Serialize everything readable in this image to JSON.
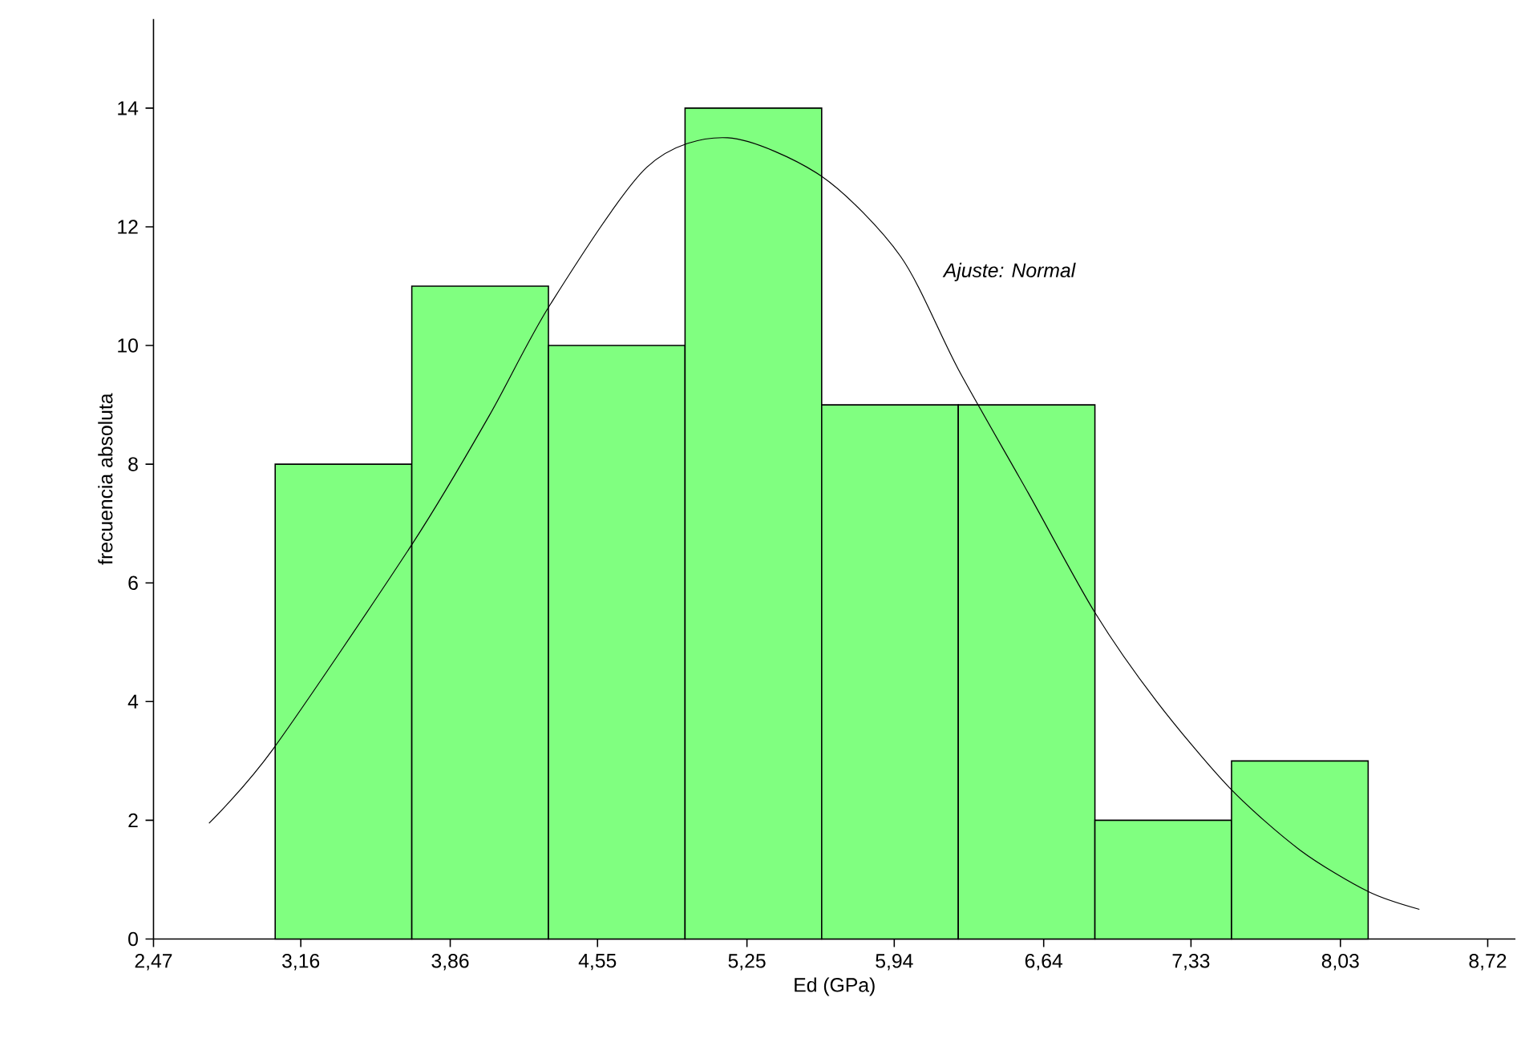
{
  "chart_data": {
    "type": "histogram",
    "xlabel": "Ed (GPa)",
    "ylabel": "frecuencia absoluta",
    "bins": [
      3.04,
      3.68,
      4.32,
      4.96,
      5.6,
      6.24,
      6.88,
      7.52,
      8.16
    ],
    "values": [
      8,
      11,
      10,
      14,
      9,
      9,
      2,
      3
    ],
    "color": "#80ff80",
    "series": [
      {
        "type": "line",
        "color": "#000000",
        "x": [
          2.73,
          3.03,
          3.69,
          4.04,
          4.33,
          4.78,
          5.16,
          5.6,
          5.97,
          6.24,
          6.57,
          6.88,
          7.17,
          7.51,
          7.84,
          8.16,
          8.4
        ],
        "values": [
          1.95,
          3.2,
          6.7,
          8.8,
          10.7,
          13.0,
          13.5,
          12.85,
          11.5,
          9.6,
          7.5,
          5.5,
          4.0,
          2.55,
          1.5,
          0.8,
          0.5
        ]
      }
    ],
    "annotations": [
      "Ajuste: Normal"
    ],
    "xlim": [
      2.47,
      8.85
    ],
    "ylim": [
      0,
      15.5
    ],
    "xticks": [
      {
        "value": 2.47,
        "label": "2,47"
      },
      {
        "value": 3.16,
        "label": "3,16"
      },
      {
        "value": 3.86,
        "label": "3,86"
      },
      {
        "value": 4.55,
        "label": "4,55"
      },
      {
        "value": 5.25,
        "label": "5,25"
      },
      {
        "value": 5.94,
        "label": "5,94"
      },
      {
        "value": 6.64,
        "label": "6,64"
      },
      {
        "value": 7.33,
        "label": "7,33"
      },
      {
        "value": 8.03,
        "label": "8,03"
      },
      {
        "value": 8.72,
        "label": "8,72"
      }
    ],
    "yticks": [
      0,
      2,
      4,
      6,
      8,
      10,
      12,
      14
    ],
    "grid": false
  }
}
